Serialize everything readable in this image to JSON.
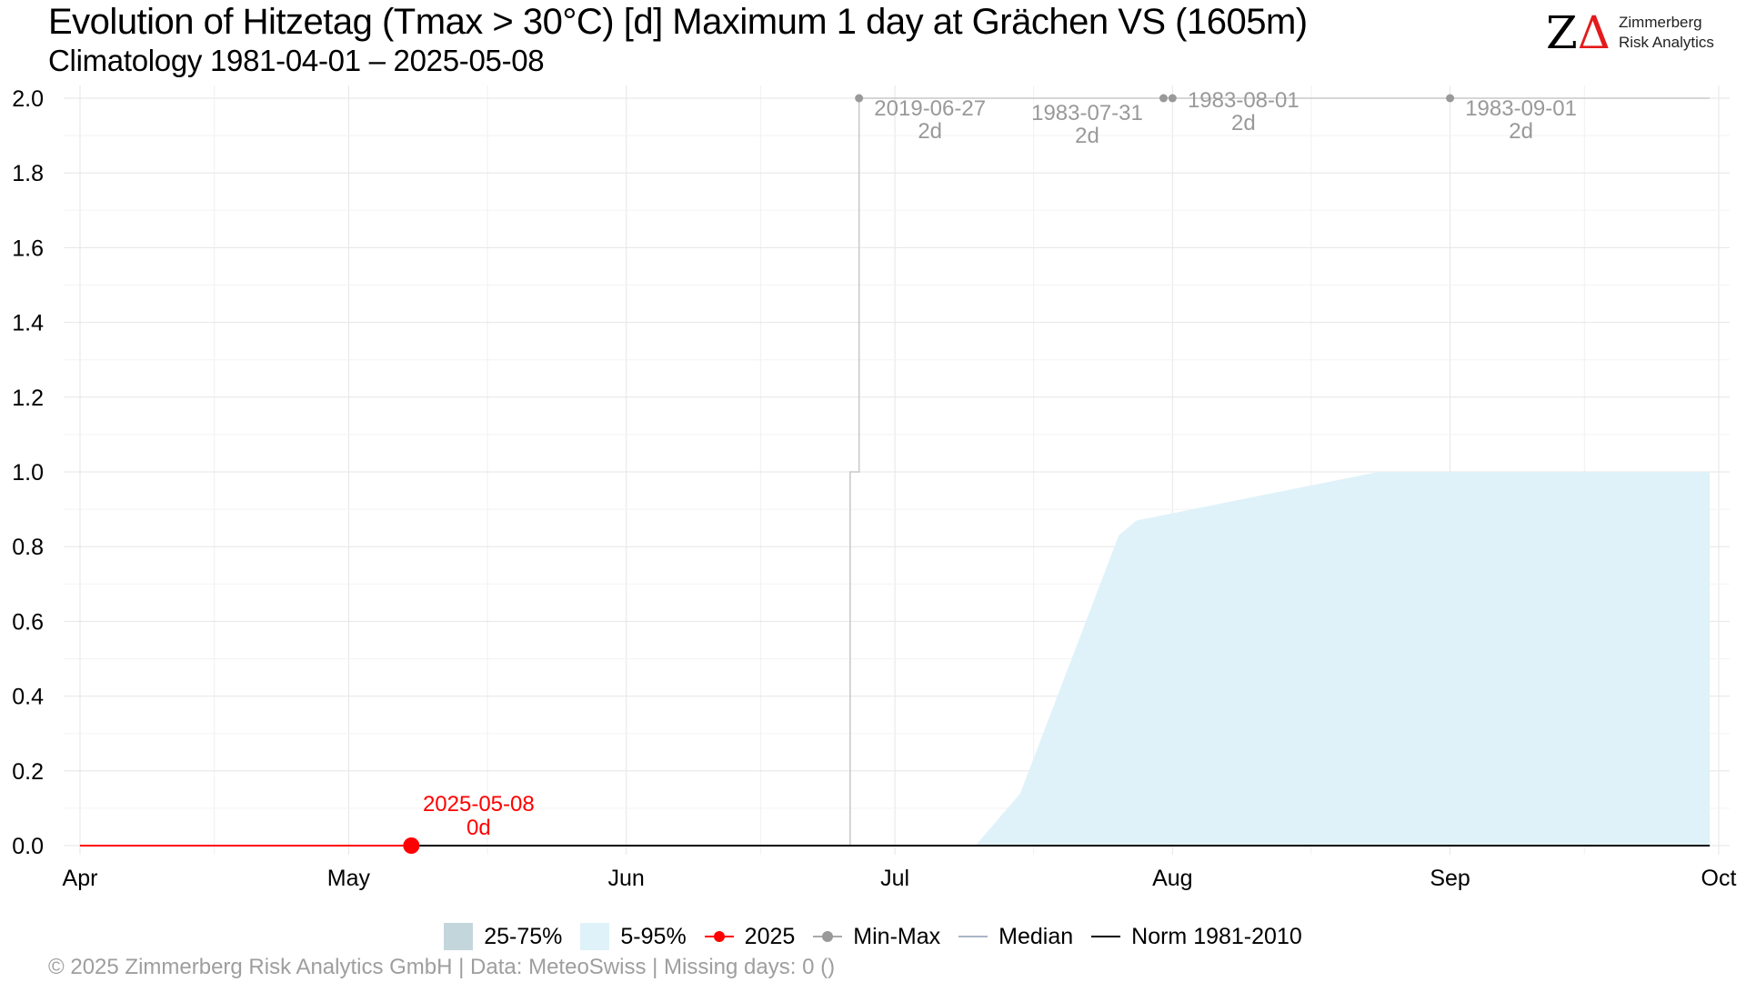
{
  "title": "Evolution of Hitzetag (Tmax > 30°C) [d] Maximum 1 day at Grächen  VS (1605m)",
  "subtitle": "Climatology 1981-04-01 – 2025-05-08",
  "logo": {
    "mark_z": "Z",
    "mark_delta": "Δ",
    "line1": "Zimmerberg",
    "line2": "Risk Analytics"
  },
  "legend": {
    "band_25_75": "25-75%",
    "band_5_95": "5-95%",
    "current_year": "2025",
    "minmax": "Min-Max",
    "median": "Median",
    "norm": "Norm 1981-2010"
  },
  "footer": "©  2025 Zimmerberg Risk Analytics GmbH | Data: MeteoSwiss | Missing days: 0 ()",
  "colors": {
    "current": "#ff0000",
    "minmax": "#999999",
    "band_25_75": "#c3d6dc",
    "band_5_95": "#dff2f9",
    "median": "#aab6c6",
    "norm": "#000000",
    "grid": "#e6e6e6"
  },
  "chart_data": {
    "type": "line",
    "xlim": [
      "2025-04-01",
      "2025-10-01"
    ],
    "ylim": [
      0,
      2
    ],
    "x_ticks": [
      {
        "date": "2025-04-01",
        "label": "Apr"
      },
      {
        "date": "2025-05-01",
        "label": "May"
      },
      {
        "date": "2025-06-01",
        "label": "Jun"
      },
      {
        "date": "2025-07-01",
        "label": "Jul"
      },
      {
        "date": "2025-08-01",
        "label": "Aug"
      },
      {
        "date": "2025-09-01",
        "label": "Sep"
      },
      {
        "date": "2025-10-01",
        "label": "Oct"
      }
    ],
    "y_ticks": [
      "0.0",
      "0.2",
      "0.4",
      "0.6",
      "0.8",
      "1.0",
      "1.2",
      "1.4",
      "1.6",
      "1.8",
      "2.0"
    ],
    "grid": true,
    "legend_position": "bottom",
    "series": [
      {
        "name": "5-95%",
        "kind": "band",
        "x": [
          "2025-04-01",
          "2025-07-10",
          "2025-07-15",
          "2025-07-26",
          "2025-07-28",
          "2025-08-24",
          "2025-09-30"
        ],
        "lower": [
          0,
          0,
          0,
          0,
          0,
          0,
          0
        ],
        "upper": [
          0,
          0,
          0.14,
          0.83,
          0.87,
          1.0,
          1.0
        ]
      },
      {
        "name": "Min-Max",
        "kind": "step",
        "x": [
          "2025-04-01",
          "2025-06-26",
          "2025-06-27",
          "2025-09-30"
        ],
        "y": [
          0,
          1,
          2,
          2
        ]
      },
      {
        "name": "Norm 1981-2010",
        "kind": "line",
        "x": [
          "2025-04-01",
          "2025-09-30"
        ],
        "y": [
          0,
          0
        ]
      },
      {
        "name": "2025",
        "kind": "line",
        "x": [
          "2025-04-01",
          "2025-05-08"
        ],
        "y": [
          0,
          0
        ]
      }
    ],
    "record_points": [
      {
        "date": "2025-06-27",
        "value": 2,
        "label_date": "2019-06-27",
        "label_value": "2d"
      },
      {
        "date": "2025-07-31",
        "value": 2,
        "label_date": "1983-07-31",
        "label_value": "2d"
      },
      {
        "date": "2025-08-01",
        "value": 2,
        "label_date": "1983-08-01",
        "label_value": "2d"
      },
      {
        "date": "2025-09-01",
        "value": 2,
        "label_date": "1983-09-01",
        "label_value": "2d"
      }
    ],
    "current_point": {
      "date": "2025-05-08",
      "value": 0,
      "label_date": "2025-05-08",
      "label_value": "0d"
    }
  }
}
